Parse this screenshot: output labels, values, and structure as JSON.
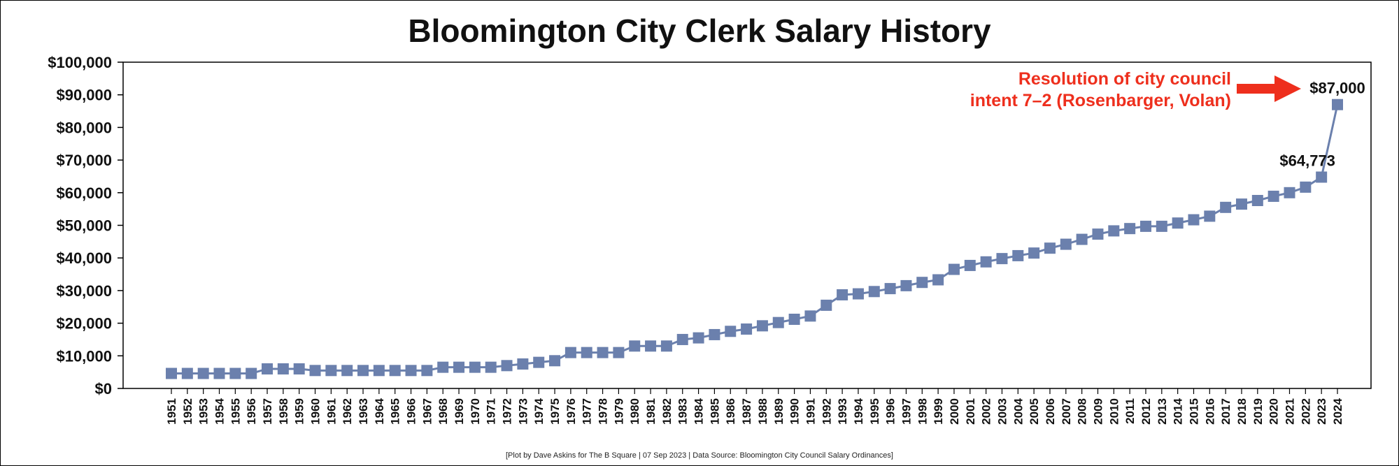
{
  "chart_data": {
    "type": "line",
    "title": "Bloomington City Clerk Salary History",
    "ylim": [
      0,
      100000
    ],
    "yticks": [
      0,
      10000,
      20000,
      30000,
      40000,
      50000,
      60000,
      70000,
      80000,
      90000,
      100000
    ],
    "ytick_labels": [
      "$0",
      "$10,000",
      "$20,000",
      "$30,000",
      "$40,000",
      "$50,000",
      "$60,000",
      "$70,000",
      "$80,000",
      "$90,000",
      "$100,000"
    ],
    "x": [
      "1951",
      "1952",
      "1953",
      "1954",
      "1955",
      "1956",
      "1957",
      "1958",
      "1959",
      "1960",
      "1961",
      "1962",
      "1963",
      "1964",
      "1965",
      "1966",
      "1967",
      "1968",
      "1969",
      "1970",
      "1971",
      "1972",
      "1973",
      "1974",
      "1975",
      "1976",
      "1977",
      "1978",
      "1979",
      "1980",
      "1981",
      "1982",
      "1983",
      "1984",
      "1985",
      "1986",
      "1987",
      "1988",
      "1989",
      "1990",
      "1991",
      "1992",
      "1993",
      "1994",
      "1995",
      "1996",
      "1997",
      "1998",
      "1999",
      "2000",
      "2001",
      "2002",
      "2003",
      "2004",
      "2005",
      "2006",
      "2007",
      "2008",
      "2009",
      "2010",
      "2011",
      "2012",
      "2013",
      "2014",
      "2015",
      "2016",
      "2017",
      "2018",
      "2019",
      "2020",
      "2021",
      "2022",
      "2023",
      "2024"
    ],
    "series": [
      {
        "values": [
          4600,
          4600,
          4600,
          4600,
          4600,
          4600,
          6000,
          6000,
          6000,
          5500,
          5500,
          5500,
          5500,
          5500,
          5500,
          5500,
          5500,
          6500,
          6500,
          6500,
          6500,
          7000,
          7500,
          8000,
          8500,
          11000,
          11000,
          11000,
          11000,
          13000,
          13000,
          13000,
          15000,
          15500,
          16500,
          17500,
          18200,
          19200,
          20200,
          21200,
          22200,
          25500,
          28700,
          29000,
          29700,
          30600,
          31500,
          32500,
          33300,
          36500,
          37700,
          38800,
          39800,
          40700,
          41500,
          43000,
          44200,
          45700,
          47300,
          48300,
          49000,
          49700,
          49700,
          50700,
          51700,
          52800,
          55500,
          56500,
          57600,
          58900,
          60000,
          61700,
          64773,
          87000
        ]
      }
    ],
    "data_labels": [
      {
        "year": "2023",
        "text": "$64,773"
      },
      {
        "year": "2024",
        "text": "$87,000"
      }
    ],
    "annotation": {
      "lines": [
        "Resolution of city council",
        "intent 7–2 (Rosenbarger, Volan)"
      ],
      "color": "#ee2f1d"
    },
    "marker_color": "#6b80ad",
    "line_color": "#6b80ad",
    "footer": "[Plot by Dave Askins for The B Square | 07 Sep 2023 | Data Source: Bloomington City Council Salary Ordinances]"
  }
}
